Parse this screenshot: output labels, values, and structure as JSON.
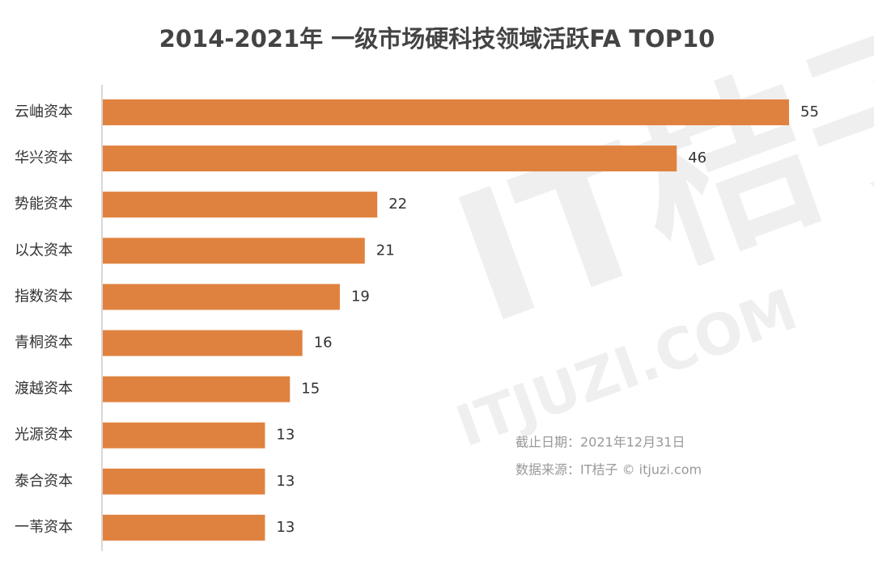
{
  "chart_data": {
    "type": "bar",
    "orientation": "horizontal",
    "title": "2014-2021年 一级市场硬科技领域活跃FA TOP10",
    "categories": [
      "云岫资本",
      "华兴资本",
      "势能资本",
      "以太资本",
      "指数资本",
      "青桐资本",
      "渡越资本",
      "光源资本",
      "泰合资本",
      "一苇资本"
    ],
    "values": [
      55,
      46,
      22,
      21,
      19,
      16,
      15,
      13,
      13,
      13
    ],
    "color": "#e0823f",
    "notes": [
      "截止日期：2021年12月31日",
      "数据来源：IT桔子 © itjuzi.com"
    ],
    "watermark": [
      "IT桔子",
      "ITJUZI.COM"
    ]
  }
}
